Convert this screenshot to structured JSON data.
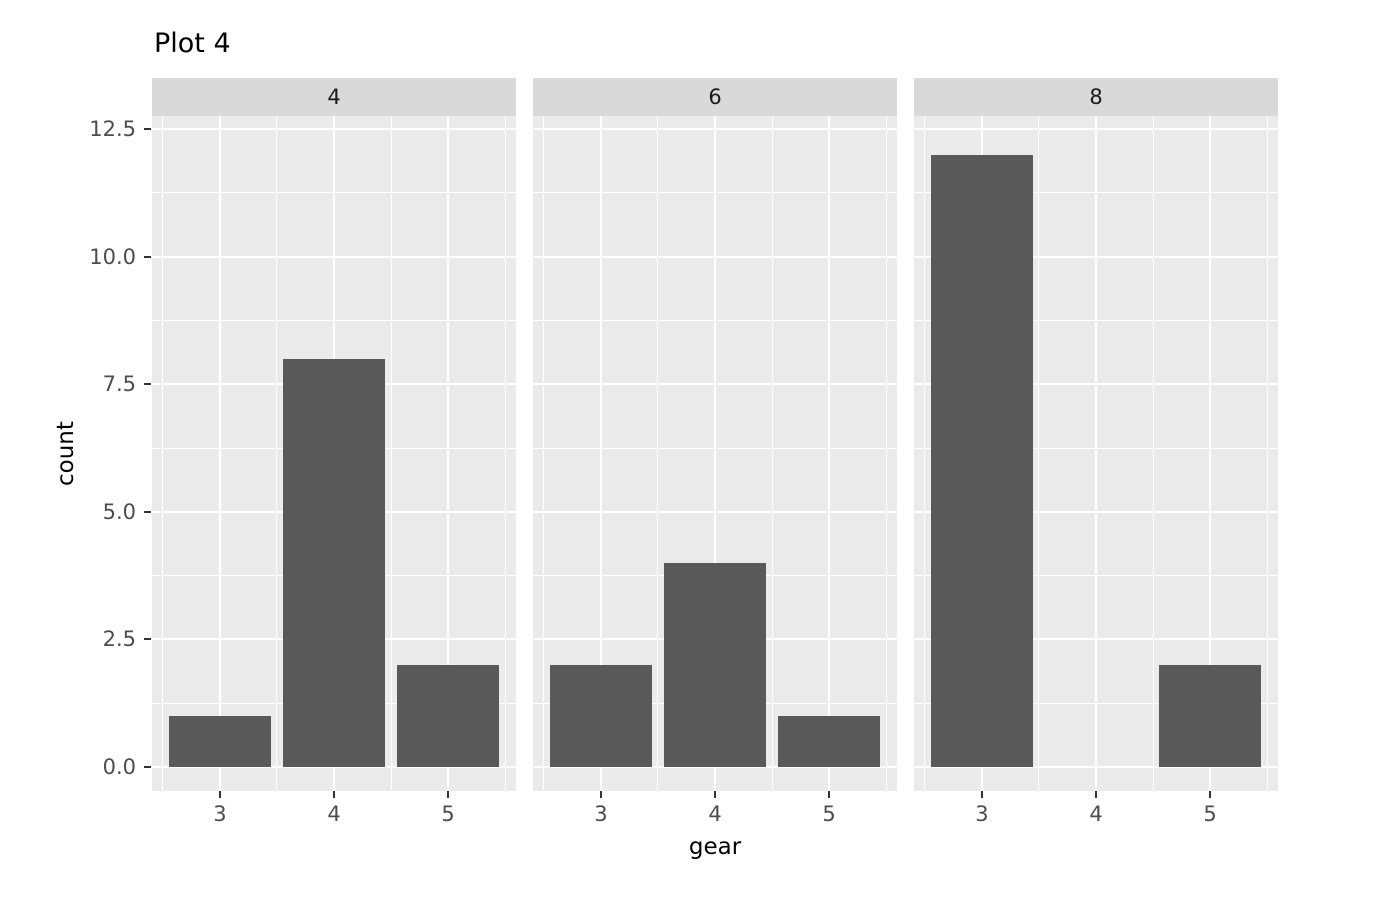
{
  "title": "Plot 4",
  "chart_data": {
    "type": "bar",
    "title": "Plot 4",
    "xlabel": "gear",
    "ylabel": "count",
    "facet_labels": [
      "4",
      "6",
      "8"
    ],
    "categories": [
      "3",
      "4",
      "5"
    ],
    "x_values": [
      3,
      4,
      5
    ],
    "series": [
      {
        "name": "4",
        "values": [
          1,
          8,
          2
        ]
      },
      {
        "name": "6",
        "values": [
          2,
          4,
          1
        ]
      },
      {
        "name": "8",
        "values": [
          12,
          0,
          2
        ]
      }
    ],
    "ylim": [
      0,
      12.5
    ],
    "yticks": [
      0,
      2.5,
      5,
      7.5,
      10,
      12.5
    ],
    "ytick_labels": [
      "0.0",
      "2.5",
      "5.0",
      "7.5",
      "10.0",
      "12.5"
    ],
    "y_minor_breaks": [
      1.25,
      3.75,
      6.25,
      8.75,
      11.25
    ],
    "x_minor_breaks": [
      2.5,
      3.5,
      4.5,
      5.5
    ],
    "xlim": [
      2.405,
      5.595
    ],
    "bar_width_units": 0.9,
    "grid": true,
    "legend": "none",
    "colors": {
      "bar": "#595959",
      "panel_bg": "#EBEBEB",
      "strip_bg": "#D9D9D9",
      "grid": "#FFFFFF",
      "tick_text": "#4D4D4D",
      "axis_title_text": "#000000",
      "strip_text": "#1A1A1A",
      "tick_mark": "#333333"
    }
  }
}
